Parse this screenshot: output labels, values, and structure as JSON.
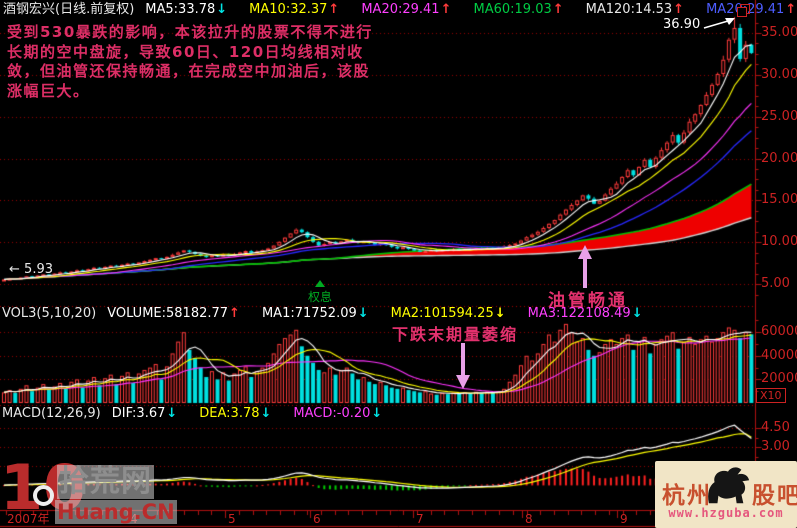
{
  "header": {
    "title": "酒钢宏兴(日线.前复权)",
    "indicators": [
      {
        "text": "MA5:33.78",
        "color": "#ffffff",
        "arrow": "↓",
        "arrow_color": "#00e5e5"
      },
      {
        "text": "MA10:32.37",
        "color": "#ffff00",
        "arrow": "↑",
        "arrow_color": "#ff3b3b"
      },
      {
        "text": "MA20:29.41",
        "color": "#ff40ff",
        "arrow": "↑",
        "arrow_color": "#ff3b3b"
      },
      {
        "text": "MA60:19.03",
        "color": "#00cc44",
        "arrow": "↑",
        "arrow_color": "#ff3b3b"
      },
      {
        "text": "MA120:14.53",
        "color": "#e8e8e8",
        "arrow": "↑",
        "arrow_color": "#ff3b3b"
      },
      {
        "text": "MA20:29.41",
        "color": "#4d5dff",
        "arrow": "↑",
        "arrow_color": "#ff3b3b"
      }
    ]
  },
  "annotation": {
    "lines": [
      "受到530暴跌的影响，本该拉升的股票不得不进行",
      "长期的空中盘旋，导致60日、120日均线相对收",
      "敛，但油管还保持畅通，在完成空中加油后，该股",
      "涨幅巨大。"
    ],
    "color": "#dd2e66"
  },
  "markers": {
    "peak_label": "36.90",
    "start_arrow": "←",
    "start_label": "5.93",
    "ex_rights_label": "权息",
    "pipe_label": "油管畅通",
    "vol_shrink_label": "下跌末期量萎缩"
  },
  "volume_panel": {
    "label": "VOL3(5,10,20)",
    "indicators": [
      {
        "text": "VOLUME:58182.77",
        "color": "#ffffff",
        "arrow": "↑",
        "arrow_color": "#ff3b3b"
      },
      {
        "text": "MA1:71752.09",
        "color": "#ffffff",
        "arrow": "↓",
        "arrow_color": "#00e5e5"
      },
      {
        "text": "MA2:101594.25",
        "color": "#ffff00",
        "arrow": "↓",
        "arrow_color": "#ffff00"
      },
      {
        "text": "MA3:122108.49",
        "color": "#ff40ff",
        "arrow": "↓",
        "arrow_color": "#00e5e5"
      }
    ],
    "multiplier": "X10"
  },
  "macd_panel": {
    "label": "MACD(12,26,9)",
    "indicators": [
      {
        "text": "DIF:3.67",
        "color": "#ffffff",
        "arrow": "↓",
        "arrow_color": "#00e5e5"
      },
      {
        "text": "DEA:3.78",
        "color": "#ffff00",
        "arrow": "↓",
        "arrow_color": "#00e5e5"
      },
      {
        "text": "MACD:-0.20",
        "color": "#ff40ff",
        "arrow": "↓",
        "arrow_color": "#00e5e5"
      }
    ]
  },
  "watermarks": {
    "left": {
      "number": "10",
      "site": "拾荒网",
      "domain": "Huang.CN"
    },
    "right": {
      "prefix": "杭州",
      "suffix": "股吧",
      "url": "www.hzguba.com"
    }
  },
  "chart_data": {
    "type": "candlestick",
    "title": "酒钢宏兴 日线 2007 (前复权)",
    "price_gridlines": [
      35,
      30,
      25,
      20,
      15,
      10,
      5
    ],
    "price_axis_labels": [
      "35.00",
      "30.00",
      "25.00",
      "20.00",
      "15.00",
      "10.00",
      "5.00"
    ],
    "price_range": [
      2.5,
      38.94
    ],
    "time_labels": [
      "2007年",
      "4",
      "5",
      "6",
      "7",
      "8",
      "9"
    ],
    "peak": {
      "index": 130,
      "high": 36.9
    },
    "first_marked_low": 5.93,
    "closes": [
      5.55,
      5.65,
      5.6,
      5.78,
      5.93,
      5.88,
      6.02,
      6.15,
      6.08,
      6.25,
      6.4,
      6.32,
      6.5,
      6.65,
      6.58,
      6.78,
      6.95,
      6.88,
      7.05,
      7.2,
      7.12,
      7.3,
      7.45,
      7.38,
      7.58,
      7.75,
      7.9,
      8.1,
      8.02,
      8.25,
      8.5,
      8.78,
      9.02,
      8.85,
      8.6,
      8.4,
      8.22,
      8.45,
      8.3,
      8.55,
      8.38,
      8.6,
      8.78,
      8.95,
      8.72,
      8.9,
      9.05,
      9.25,
      9.6,
      10.05,
      10.55,
      11.05,
      11.5,
      11.2,
      10.6,
      10.05,
      9.6,
      9.8,
      10.05,
      9.85,
      10.1,
      10.3,
      10.15,
      9.95,
      10.12,
      9.9,
      9.7,
      9.88,
      9.65,
      9.45,
      9.25,
      9.4,
      9.18,
      9.0,
      8.85,
      8.95,
      9.1,
      8.95,
      9.12,
      9.0,
      9.18,
      9.05,
      9.22,
      9.1,
      9.28,
      9.15,
      9.32,
      9.2,
      9.38,
      9.5,
      9.65,
      9.85,
      10.2,
      10.6,
      10.9,
      11.25,
      11.7,
      12.2,
      12.65,
      13.3,
      13.9,
      14.45,
      15.0,
      15.6,
      15.2,
      14.6,
      14.95,
      15.7,
      16.4,
      17.0,
      17.8,
      18.6,
      18.0,
      19.0,
      19.85,
      19.0,
      20.1,
      21.0,
      21.9,
      22.8,
      21.9,
      23.1,
      24.4,
      25.3,
      26.4,
      27.6,
      28.8,
      30.1,
      31.8,
      34.2,
      35.6,
      31.9,
      33.6,
      32.6
    ],
    "volume_gridlines": [
      60000,
      40000,
      20000
    ],
    "volume_axis_labels": [
      "60000",
      "40000",
      "20000"
    ],
    "volume_max": 72000,
    "volume_unit": "X10",
    "volumes": [
      9000,
      11000,
      8500,
      12000,
      15000,
      10000,
      13000,
      16000,
      11000,
      14000,
      17000,
      12000,
      18000,
      20000,
      13000,
      19000,
      22000,
      15000,
      21000,
      24000,
      16000,
      23000,
      26000,
      17000,
      25000,
      28000,
      30000,
      33000,
      20000,
      31000,
      42000,
      52000,
      60000,
      45000,
      38000,
      30000,
      22000,
      27000,
      20000,
      26000,
      19000,
      25000,
      28000,
      31000,
      22000,
      27000,
      30000,
      34000,
      42000,
      50000,
      55000,
      58000,
      62000,
      48000,
      40000,
      34000,
      28000,
      26000,
      30000,
      24000,
      28000,
      30000,
      25000,
      20000,
      22000,
      18000,
      16000,
      18000,
      15000,
      13000,
      12000,
      13000,
      11000,
      10000,
      9000,
      10000,
      8000,
      7000,
      8500,
      7500,
      9000,
      7800,
      9200,
      8000,
      9500,
      8200,
      9800,
      8500,
      10000,
      12000,
      18000,
      24000,
      32000,
      40000,
      36000,
      42000,
      50000,
      58000,
      52000,
      62000,
      67000,
      60000,
      52000,
      55000,
      45000,
      40000,
      43000,
      50000,
      54000,
      50000,
      55000,
      58000,
      45000,
      52000,
      56000,
      42000,
      50000,
      54000,
      57000,
      60000,
      46000,
      52000,
      56000,
      50000,
      54000,
      57000,
      52000,
      55000,
      60000,
      64000,
      62000,
      55000,
      60000,
      58182.77
    ],
    "macd": {
      "gridlines": [
        4.5,
        3.0,
        1.5
      ],
      "axis_labels": [
        "4.50",
        "3.00"
      ],
      "range": [
        -1.85,
        5.05
      ],
      "last_dif": 3.67,
      "last_dea": 3.78,
      "last_macd": -0.2,
      "dif": [
        0.02,
        0.04,
        0.05,
        0.07,
        0.1,
        0.11,
        0.13,
        0.15,
        0.15,
        0.17,
        0.19,
        0.19,
        0.21,
        0.23,
        0.23,
        0.25,
        0.27,
        0.27,
        0.29,
        0.31,
        0.31,
        0.33,
        0.35,
        0.34,
        0.36,
        0.38,
        0.4,
        0.43,
        0.42,
        0.45,
        0.5,
        0.56,
        0.62,
        0.62,
        0.58,
        0.52,
        0.46,
        0.44,
        0.41,
        0.41,
        0.38,
        0.38,
        0.4,
        0.42,
        0.41,
        0.42,
        0.44,
        0.47,
        0.54,
        0.63,
        0.74,
        0.86,
        0.97,
        0.98,
        0.9,
        0.78,
        0.64,
        0.56,
        0.52,
        0.46,
        0.44,
        0.43,
        0.4,
        0.35,
        0.32,
        0.27,
        0.21,
        0.18,
        0.12,
        0.06,
        0.0,
        -0.04,
        -0.09,
        -0.14,
        -0.19,
        -0.2,
        -0.21,
        -0.22,
        -0.21,
        -0.21,
        -0.19,
        -0.18,
        -0.16,
        -0.14,
        -0.12,
        -0.1,
        -0.08,
        -0.06,
        -0.03,
        0.02,
        0.1,
        0.2,
        0.34,
        0.5,
        0.64,
        0.8,
        0.98,
        1.16,
        1.32,
        1.52,
        1.72,
        1.9,
        2.06,
        2.2,
        2.24,
        2.18,
        2.16,
        2.22,
        2.32,
        2.44,
        2.58,
        2.74,
        2.76,
        2.86,
        2.98,
        2.92,
        3.0,
        3.12,
        3.24,
        3.38,
        3.36,
        3.44,
        3.56,
        3.66,
        3.78,
        3.92,
        4.06,
        4.22,
        4.4,
        4.6,
        4.72,
        4.35,
        4.0,
        3.67
      ],
      "dea": [
        0.01,
        0.02,
        0.03,
        0.04,
        0.05,
        0.06,
        0.08,
        0.09,
        0.1,
        0.11,
        0.13,
        0.14,
        0.15,
        0.17,
        0.18,
        0.19,
        0.21,
        0.22,
        0.23,
        0.25,
        0.26,
        0.27,
        0.29,
        0.3,
        0.31,
        0.32,
        0.34,
        0.36,
        0.37,
        0.38,
        0.4,
        0.43,
        0.47,
        0.5,
        0.52,
        0.52,
        0.51,
        0.49,
        0.48,
        0.46,
        0.45,
        0.43,
        0.43,
        0.43,
        0.42,
        0.42,
        0.42,
        0.43,
        0.45,
        0.49,
        0.54,
        0.6,
        0.67,
        0.73,
        0.77,
        0.77,
        0.74,
        0.71,
        0.67,
        0.63,
        0.59,
        0.56,
        0.53,
        0.49,
        0.46,
        0.42,
        0.38,
        0.34,
        0.29,
        0.25,
        0.2,
        0.15,
        0.1,
        0.05,
        0.0,
        -0.04,
        -0.07,
        -0.1,
        -0.12,
        -0.14,
        -0.15,
        -0.15,
        -0.15,
        -0.15,
        -0.14,
        -0.13,
        -0.12,
        -0.11,
        -0.09,
        -0.07,
        -0.04,
        0.01,
        0.08,
        0.16,
        0.26,
        0.37,
        0.49,
        0.62,
        0.76,
        0.91,
        1.07,
        1.24,
        1.4,
        1.56,
        1.7,
        1.8,
        1.87,
        1.94,
        2.02,
        2.1,
        2.2,
        2.31,
        2.4,
        2.49,
        2.59,
        2.66,
        2.73,
        2.81,
        2.89,
        2.99,
        3.06,
        3.14,
        3.22,
        3.31,
        3.4,
        3.5,
        3.61,
        3.73,
        3.78,
        3.88,
        3.99,
        4.05,
        4.04,
        3.78
      ]
    },
    "colors": {
      "up": "#ff3b3b",
      "down": "#00e0e0",
      "grid": "#9c0000",
      "axis": "#b01010",
      "wedge": "#ee0000",
      "ma5": "#ffffff",
      "ma10": "#ffff00",
      "ma20": "#ff33ff",
      "ma30": "#2828ff",
      "ma60": "#00c000",
      "ma120": "#d0d0d0",
      "dif": "#ffffff",
      "dea": "#ffff00",
      "hist_pos": "#ff2020",
      "hist_neg": "#00cc00"
    }
  }
}
